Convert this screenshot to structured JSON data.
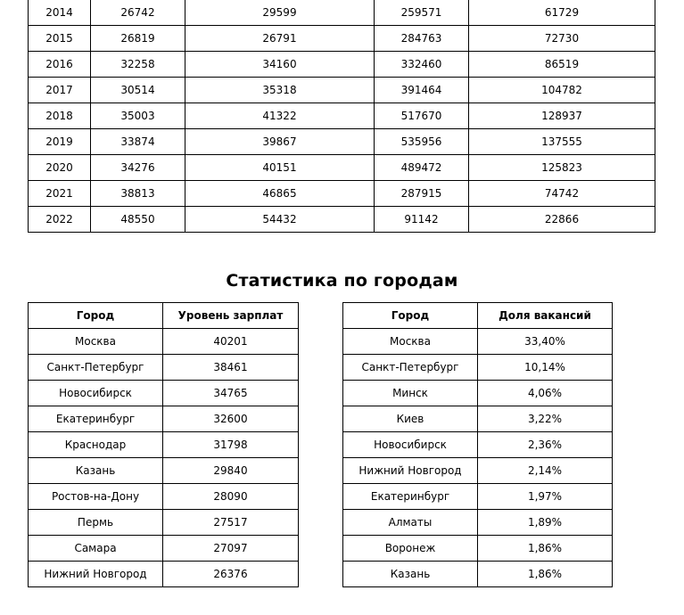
{
  "year_table": {
    "rows": [
      [
        "2014",
        "26742",
        "29599",
        "259571",
        "61729"
      ],
      [
        "2015",
        "26819",
        "26791",
        "284763",
        "72730"
      ],
      [
        "2016",
        "32258",
        "34160",
        "332460",
        "86519"
      ],
      [
        "2017",
        "30514",
        "35318",
        "391464",
        "104782"
      ],
      [
        "2018",
        "35003",
        "41322",
        "517670",
        "128937"
      ],
      [
        "2019",
        "33874",
        "39867",
        "535956",
        "137555"
      ],
      [
        "2020",
        "34276",
        "40151",
        "489472",
        "125823"
      ],
      [
        "2021",
        "38813",
        "46865",
        "287915",
        "74742"
      ],
      [
        "2022",
        "48550",
        "54432",
        "91142",
        "22866"
      ]
    ]
  },
  "section_title": "Статистика по городам",
  "salary_table": {
    "headers": [
      "Город",
      "Уровень зарплат"
    ],
    "rows": [
      [
        "Москва",
        "40201"
      ],
      [
        "Санкт-Петербург",
        "38461"
      ],
      [
        "Новосибирск",
        "34765"
      ],
      [
        "Екатеринбург",
        "32600"
      ],
      [
        "Краснодар",
        "31798"
      ],
      [
        "Казань",
        "29840"
      ],
      [
        "Ростов-на-Дону",
        "28090"
      ],
      [
        "Пермь",
        "27517"
      ],
      [
        "Самара",
        "27097"
      ],
      [
        "Нижний Новгород",
        "26376"
      ]
    ]
  },
  "vacancy_table": {
    "headers": [
      "Город",
      "Доля вакансий"
    ],
    "rows": [
      [
        "Москва",
        "33,40%"
      ],
      [
        "Санкт-Петербург",
        "10,14%"
      ],
      [
        "Минск",
        "4,06%"
      ],
      [
        "Киев",
        "3,22%"
      ],
      [
        "Новосибирск",
        "2,36%"
      ],
      [
        "Нижний Новгород",
        "2,14%"
      ],
      [
        "Екатеринбург",
        "1,97%"
      ],
      [
        "Алматы",
        "1,89%"
      ],
      [
        "Воронеж",
        "1,86%"
      ],
      [
        "Казань",
        "1,86%"
      ]
    ]
  }
}
